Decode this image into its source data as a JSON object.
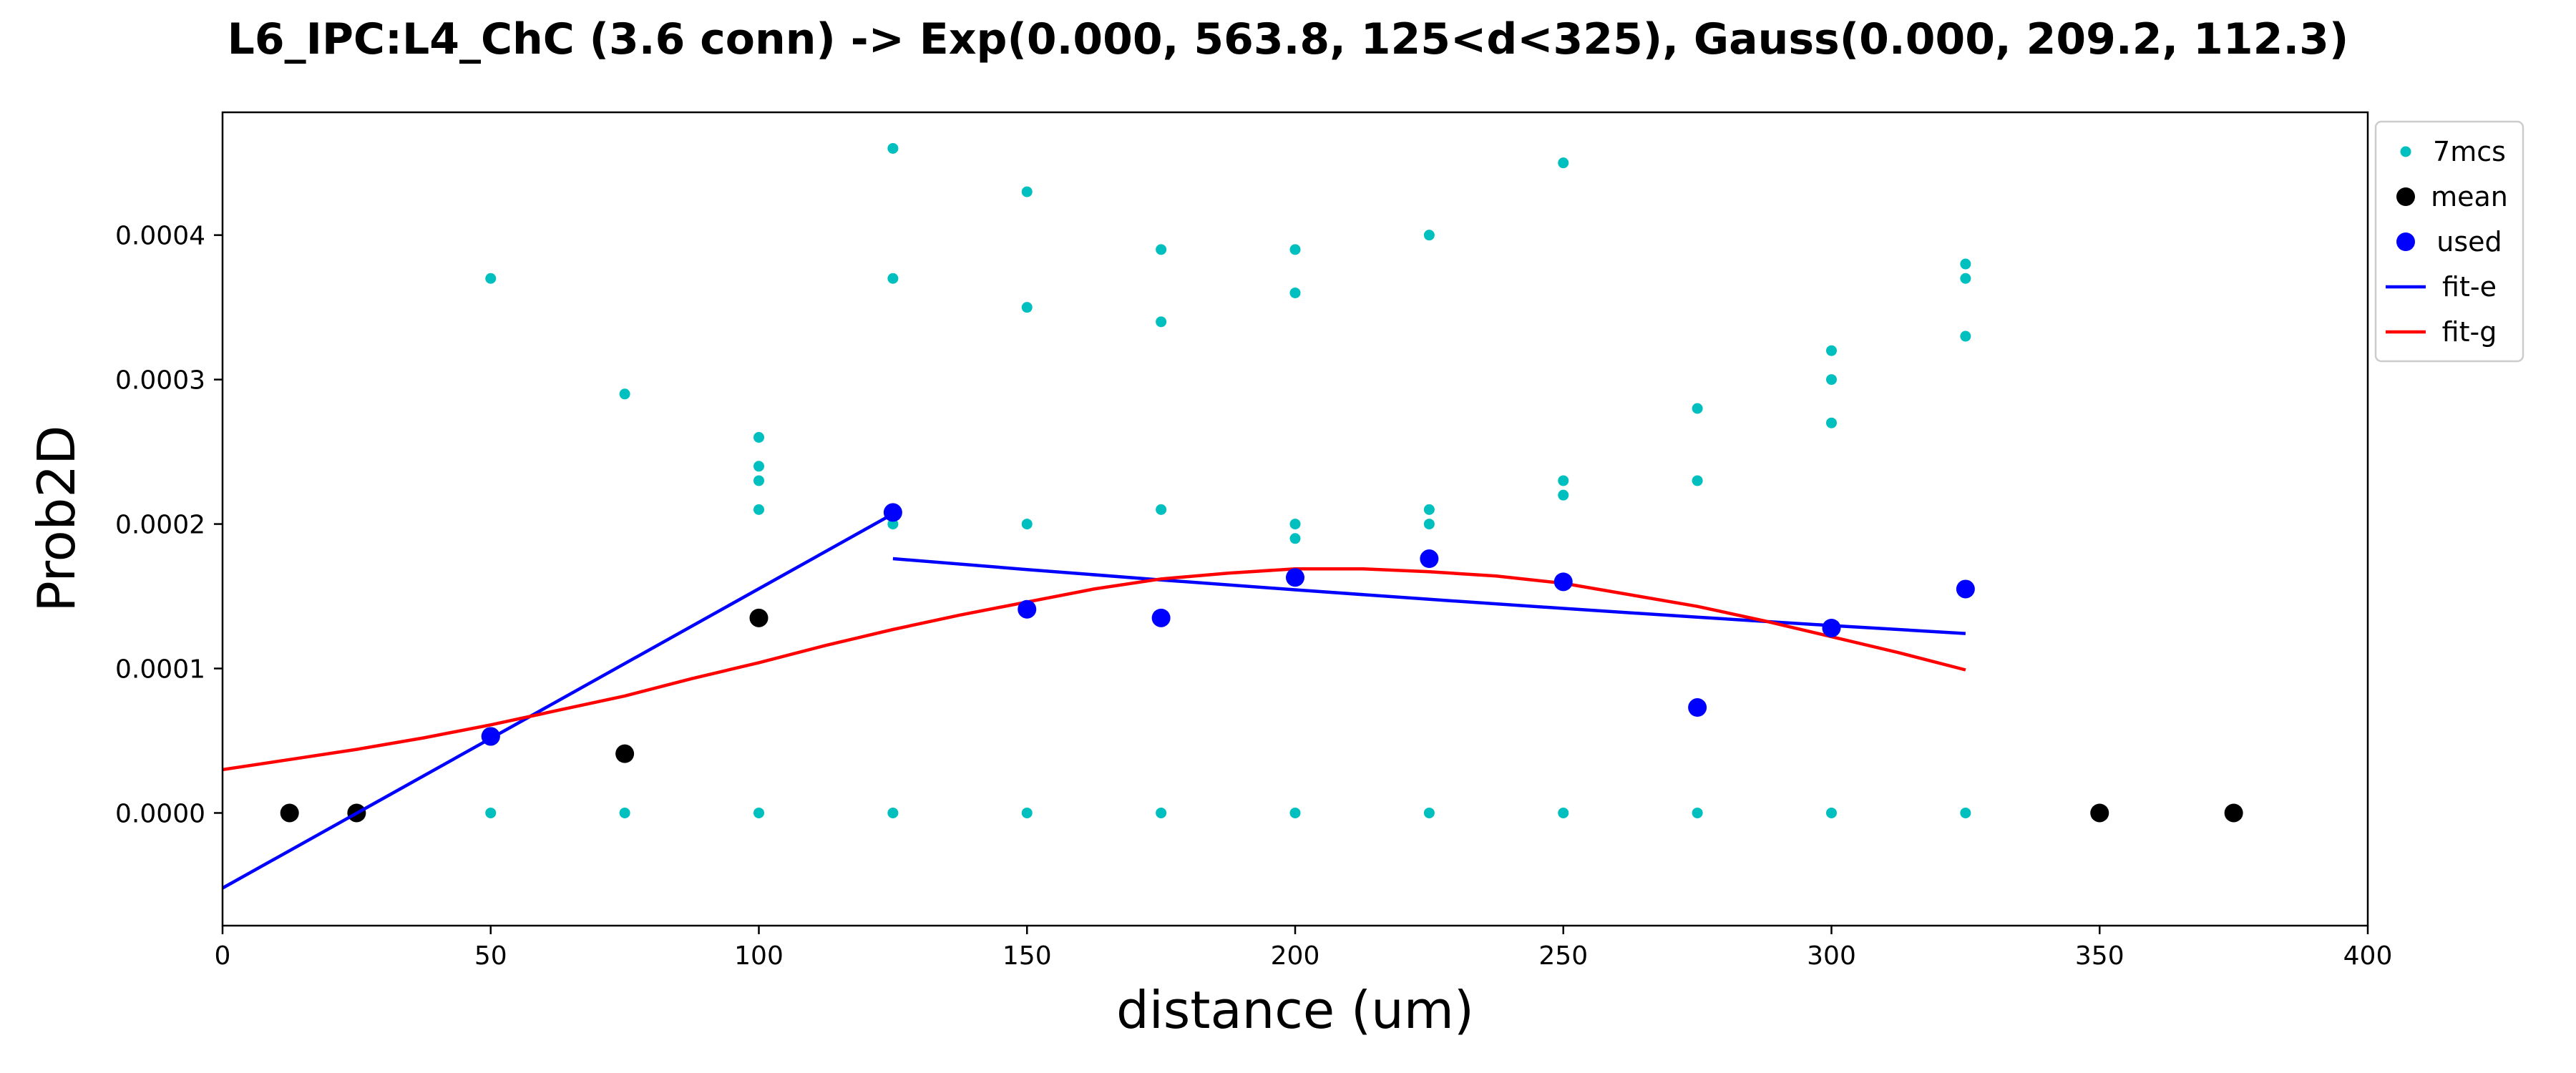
{
  "chart_data": {
    "type": "scatter",
    "title": "L6_IPC:L4_ChC (3.6 conn) -> Exp(0.000, 563.8, 125<d<325), Gauss(0.000, 209.2, 112.3)",
    "xlabel": "distance (um)",
    "ylabel": "Prob2D",
    "xlim": [
      0,
      400
    ],
    "ylim": [
      -7.8e-05,
      0.000485
    ],
    "x_ticks": [
      "0",
      "50",
      "100",
      "150",
      "200",
      "250",
      "300",
      "350",
      "400"
    ],
    "x_tick_values": [
      0,
      50,
      100,
      150,
      200,
      250,
      300,
      350,
      400
    ],
    "y_ticks": [
      "0.0000",
      "0.0001",
      "0.0002",
      "0.0003",
      "0.0004"
    ],
    "y_tick_values": [
      0,
      0.0001,
      0.0002,
      0.0003,
      0.0004
    ],
    "grid": false,
    "legend_position": "outside-top-right",
    "colors": {
      "7mcs": "#00bfbf",
      "mean": "#000000",
      "used": "#0000ff",
      "fit_e": "#0000ff",
      "fit_g": "#ff0000"
    },
    "legend": [
      {
        "label": "7mcs",
        "kind": "small-dot",
        "color": "#00bfbf"
      },
      {
        "label": "mean",
        "kind": "big-dot",
        "color": "#000000"
      },
      {
        "label": "used",
        "kind": "big-dot",
        "color": "#0000ff"
      },
      {
        "label": "fit-e",
        "kind": "line",
        "color": "#0000ff"
      },
      {
        "label": "fit-g",
        "kind": "line",
        "color": "#ff0000"
      }
    ],
    "series": [
      {
        "name": "7mcs",
        "kind": "small-dot",
        "points": [
          [
            50,
            0.00037
          ],
          [
            50,
            0
          ],
          [
            75,
            0.00029
          ],
          [
            75,
            0
          ],
          [
            100,
            0.00026
          ],
          [
            100,
            0.00024
          ],
          [
            100,
            0.00023
          ],
          [
            100,
            0.00021
          ],
          [
            100,
            0
          ],
          [
            125,
            0.00046
          ],
          [
            125,
            0.00037
          ],
          [
            125,
            0.0002
          ],
          [
            125,
            0
          ],
          [
            150,
            0.00043
          ],
          [
            150,
            0.00035
          ],
          [
            150,
            0.0002
          ],
          [
            150,
            0
          ],
          [
            175,
            0.00039
          ],
          [
            175,
            0.00034
          ],
          [
            175,
            0.00021
          ],
          [
            175,
            0
          ],
          [
            200,
            0.00039
          ],
          [
            200,
            0.00036
          ],
          [
            200,
            0.0002
          ],
          [
            200,
            0.00019
          ],
          [
            200,
            0
          ],
          [
            225,
            0.0004
          ],
          [
            225,
            0.00021
          ],
          [
            225,
            0.0002
          ],
          [
            225,
            0
          ],
          [
            250,
            0.00045
          ],
          [
            250,
            0.00023
          ],
          [
            250,
            0.00022
          ],
          [
            250,
            0
          ],
          [
            275,
            0.00028
          ],
          [
            275,
            0.00023
          ],
          [
            275,
            0
          ],
          [
            300,
            0.00032
          ],
          [
            300,
            0.0003
          ],
          [
            300,
            0.00027
          ],
          [
            300,
            0
          ],
          [
            325,
            0.00038
          ],
          [
            325,
            0.00037
          ],
          [
            325,
            0.00033
          ],
          [
            325,
            0
          ]
        ]
      },
      {
        "name": "mean",
        "kind": "big-dot",
        "points": [
          [
            12.5,
            0
          ],
          [
            25,
            0
          ],
          [
            50,
            5.3e-05
          ],
          [
            75,
            4.1e-05
          ],
          [
            100,
            0.000135
          ],
          [
            350,
            0
          ],
          [
            375,
            0
          ]
        ]
      },
      {
        "name": "used",
        "kind": "big-dot",
        "points": [
          [
            50,
            5.3e-05
          ],
          [
            125,
            0.000208
          ],
          [
            150,
            0.000141
          ],
          [
            175,
            0.000135
          ],
          [
            200,
            0.000163
          ],
          [
            225,
            0.000176
          ],
          [
            250,
            0.00016
          ],
          [
            275,
            7.3e-05
          ],
          [
            300,
            0.000128
          ],
          [
            325,
            0.000155
          ]
        ]
      },
      {
        "name": "fit-e",
        "kind": "line",
        "segments": [
          [
            [
              0,
              -5.2e-05
            ],
            [
              125,
              0.000207
            ]
          ],
          [
            [
              125,
              0.000176
            ],
            [
              150,
              0.0001685
            ],
            [
              175,
              0.0001613
            ],
            [
              200,
              0.0001545
            ],
            [
              225,
              0.0001479
            ],
            [
              250,
              0.0001416
            ],
            [
              275,
              0.0001355
            ],
            [
              300,
              0.0001297
            ],
            [
              325,
              0.0001242
            ]
          ]
        ]
      },
      {
        "name": "fit-g",
        "kind": "line",
        "points": [
          [
            0,
            3e-05
          ],
          [
            12.5,
            3.7e-05
          ],
          [
            25,
            4.4e-05
          ],
          [
            37.5,
            5.2e-05
          ],
          [
            50,
            6.1e-05
          ],
          [
            62.5,
            7.1e-05
          ],
          [
            75,
            8.1e-05
          ],
          [
            87.5,
            9.3e-05
          ],
          [
            100,
            0.000104
          ],
          [
            112.5,
            0.000116
          ],
          [
            125,
            0.000127
          ],
          [
            137.5,
            0.000137
          ],
          [
            150,
            0.000146
          ],
          [
            162.5,
            0.000155
          ],
          [
            175,
            0.000162
          ],
          [
            187.5,
            0.000166
          ],
          [
            200,
            0.000169
          ],
          [
            212.5,
            0.000169
          ],
          [
            225,
            0.000167
          ],
          [
            237.5,
            0.000164
          ],
          [
            250,
            0.000159
          ],
          [
            262.5,
            0.000151
          ],
          [
            275,
            0.000143
          ],
          [
            287.5,
            0.000133
          ],
          [
            300,
            0.000122
          ],
          [
            312.5,
            0.000111
          ],
          [
            325,
            9.9e-05
          ]
        ]
      }
    ]
  }
}
